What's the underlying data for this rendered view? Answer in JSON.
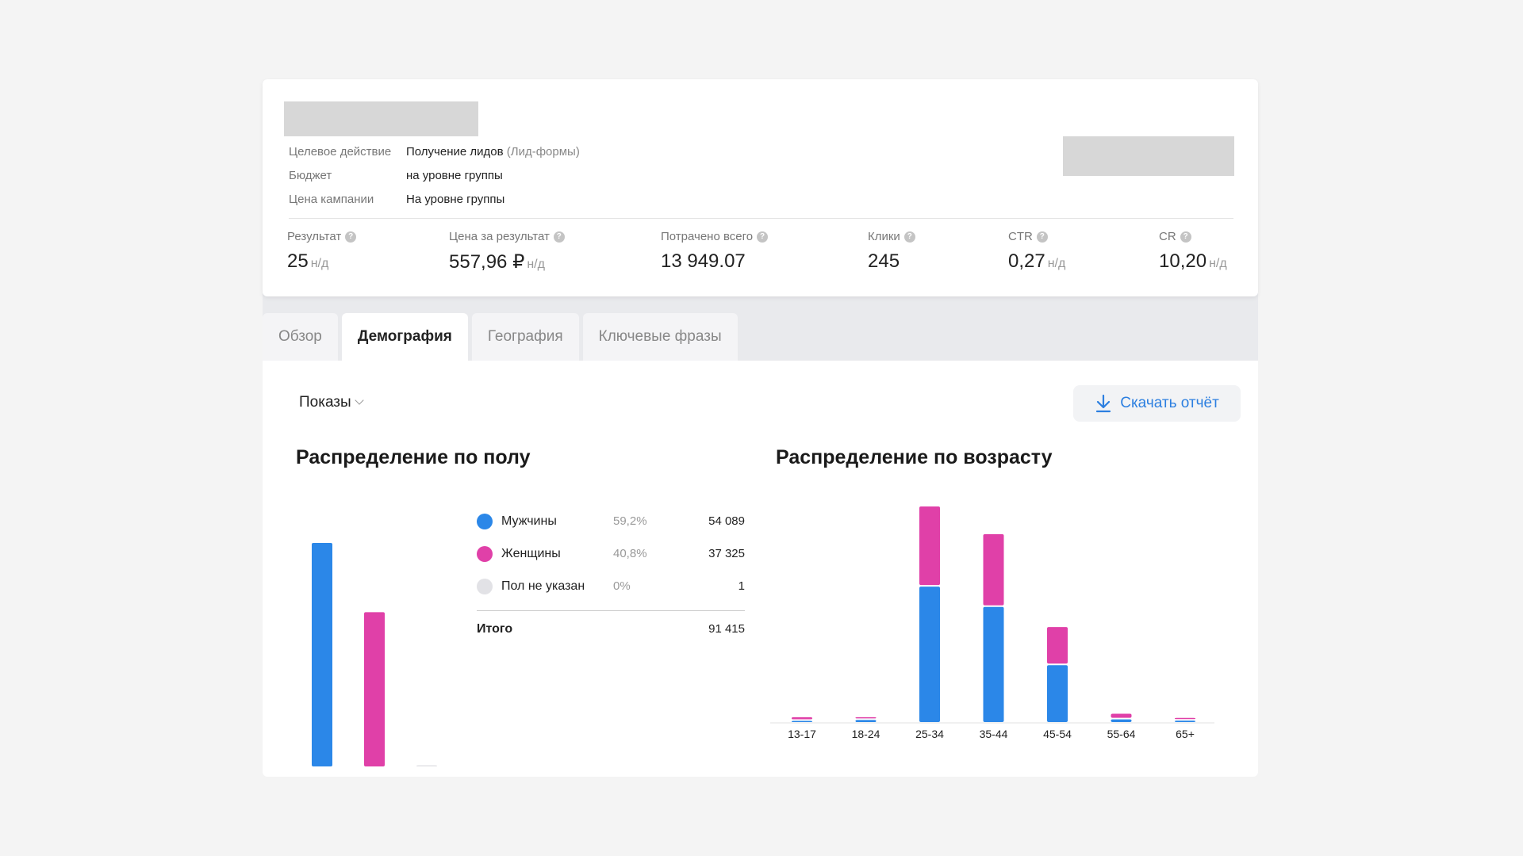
{
  "campaign": {
    "props": [
      {
        "label": "Целевое действие",
        "value": "Получение лидов",
        "extra": "(Лид-формы)"
      },
      {
        "label": "Бюджет",
        "value": "на уровне группы",
        "extra": ""
      },
      {
        "label": "Цена кампании",
        "value": "На уровне группы",
        "extra": ""
      }
    ]
  },
  "metrics": [
    {
      "label": "Результат",
      "value": "25",
      "na": "н/д"
    },
    {
      "label": "Цена за результат",
      "value": "557,96 ₽",
      "na": "н/д"
    },
    {
      "label": "Потрачено всего",
      "value": "13 949.07",
      "na": ""
    },
    {
      "label": "Клики",
      "value": "245",
      "na": ""
    },
    {
      "label": "CTR",
      "value": "0,27",
      "na": "н/д"
    },
    {
      "label": "CR",
      "value": "10,20",
      "na": "н/д"
    }
  ],
  "tabs": [
    "Обзор",
    "Демография",
    "География",
    "Ключевые фразы"
  ],
  "active_tab": "Демография",
  "toolbar": {
    "metric_select": "Показы",
    "download_label": "Скачать отчёт"
  },
  "gender": {
    "title": "Распределение по полу",
    "rows": [
      {
        "name": "Мужчины",
        "pct": "59,2%",
        "value": "54 089"
      },
      {
        "name": "Женщины",
        "pct": "40,8%",
        "value": "37 325"
      },
      {
        "name": "Пол не указан",
        "pct": "0%",
        "value": "1"
      }
    ],
    "total_label": "Итого",
    "total_value": "91 415"
  },
  "age": {
    "title": "Распределение по возрасту"
  },
  "colors": {
    "male": "#2b87e8",
    "female": "#e040a8",
    "unknown": "#e2e2e6",
    "accent": "#2c7fe0"
  },
  "chart_data": [
    {
      "type": "bar",
      "categories": [
        "Мужчины",
        "Женщины",
        "Пол не указан"
      ],
      "values": [
        54089,
        37325,
        1
      ]
    },
    {
      "type": "bar",
      "stacked": true,
      "categories": [
        "13-17",
        "18-24",
        "25-34",
        "35-44",
        "45-54",
        "55-64",
        "65+"
      ],
      "series": [
        {
          "name": "Мужчины",
          "values": [
            150,
            300,
            20000,
            17000,
            8400,
            400,
            200
          ]
        },
        {
          "name": "Женщины",
          "values": [
            300,
            100,
            11600,
            10500,
            5400,
            600,
            100
          ]
        }
      ]
    }
  ]
}
